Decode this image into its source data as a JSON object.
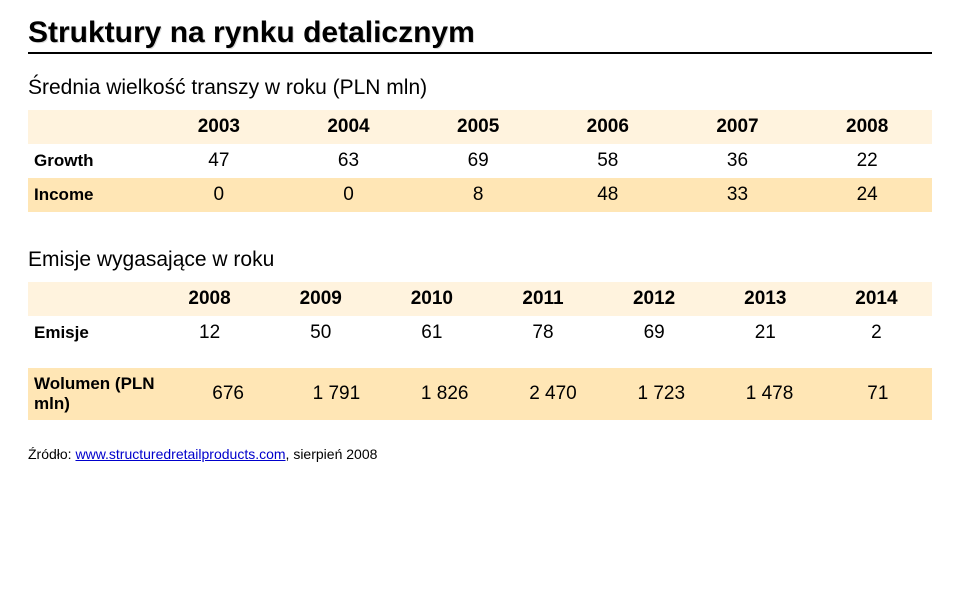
{
  "title": "Struktury na rynku detalicznym",
  "subtitle1": "Średnia wielkość transzy w roku (PLN mln)",
  "table1": {
    "header_row_bg": "#fff3de",
    "alt_row_bg": "#ffe6b5",
    "columns": [
      "2003",
      "2004",
      "2005",
      "2006",
      "2007",
      "2008"
    ],
    "rows": [
      {
        "label": "Growth",
        "cells": [
          "47",
          "63",
          "69",
          "58",
          "36",
          "22"
        ]
      },
      {
        "label": "Income",
        "cells": [
          "0",
          "0",
          "8",
          "48",
          "33",
          "24"
        ]
      }
    ]
  },
  "subtitle2": "Emisje wygasające w roku",
  "table2": {
    "header_row_bg": "#fff3de",
    "alt_row_bg": "#ffe6b5",
    "columns": [
      "2008",
      "2009",
      "2010",
      "2011",
      "2012",
      "2013",
      "2014"
    ],
    "rows": [
      {
        "label": "Emisje",
        "cells": [
          "12",
          "50",
          "61",
          "78",
          "69",
          "21",
          "2"
        ]
      }
    ]
  },
  "table3": {
    "alt_row_bg": "#ffe6b5",
    "rows": [
      {
        "label": "Wolumen (PLN mln)",
        "cells": [
          "676",
          "1 791",
          "1 826",
          "2 470",
          "1 723",
          "1 478",
          "71"
        ]
      }
    ]
  },
  "citation_prefix": "Źródło: ",
  "citation_link_text": "www.structuredretailproducts.com",
  "citation_suffix": ", sierpień 2008"
}
